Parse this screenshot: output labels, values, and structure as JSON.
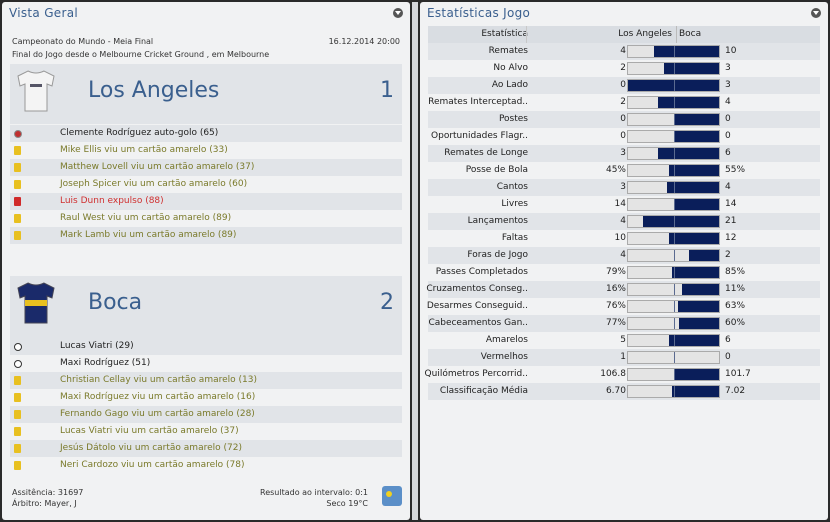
{
  "left": {
    "title": "Vista Geral",
    "competition": "Campeonato do Mundo - Meia Final",
    "datetime": "16.12.2014 20:00",
    "venue": "Final do Jogo desde o Melbourne Cricket Ground , em Melbourne",
    "home": {
      "name": "Los Angeles",
      "score": "1",
      "events": [
        {
          "type": "own-goal",
          "text": "Clemente Rodríguez auto-golo (65)"
        },
        {
          "type": "yellow",
          "text": "Mike Ellis viu um cartão amarelo (33)"
        },
        {
          "type": "yellow",
          "text": "Matthew Lovell viu um cartão amarelo (37)"
        },
        {
          "type": "yellow",
          "text": "Joseph Spicer viu um cartão amarelo (60)"
        },
        {
          "type": "red",
          "text": "Luis Dunn expulso (88)"
        },
        {
          "type": "yellow",
          "text": "Raul West viu um cartão amarelo (89)"
        },
        {
          "type": "yellow",
          "text": "Mark Lamb viu um cartão amarelo (89)"
        }
      ]
    },
    "away": {
      "name": "Boca",
      "score": "2",
      "events": [
        {
          "type": "goal",
          "text": "Lucas Viatri (29)"
        },
        {
          "type": "goal",
          "text": "Maxi Rodríguez (51)"
        },
        {
          "type": "yellow",
          "text": "Christian Cellay viu um cartão amarelo (13)"
        },
        {
          "type": "yellow",
          "text": "Maxi Rodríguez viu um cartão amarelo (16)"
        },
        {
          "type": "yellow",
          "text": "Fernando Gago viu um cartão amarelo (28)"
        },
        {
          "type": "yellow",
          "text": "Lucas Viatri viu um cartão amarelo (37)"
        },
        {
          "type": "yellow",
          "text": "Jesús Dátolo viu um cartão amarelo (72)"
        },
        {
          "type": "yellow",
          "text": "Neri Cardozo viu um cartão amarelo (78)"
        }
      ]
    },
    "attendance": "Assitência: 31697",
    "referee": "Árbitro: Mayer, J",
    "halftime": "Resultado ao intervalo: 0:1",
    "weather": "Seco 19°C",
    "weather_icon": "sunny-icon"
  },
  "right": {
    "title": "Estatísticas Jogo",
    "headers": [
      "Estatística",
      "Los Angeles",
      "Boca"
    ],
    "colors": {
      "home": "#e4e4e4",
      "away": "#0a1e5a"
    },
    "rows": [
      {
        "label": "Remates",
        "home": "4",
        "away": "10",
        "share": 0.286
      },
      {
        "label": "No Alvo",
        "home": "2",
        "away": "3",
        "share": 0.4
      },
      {
        "label": "Ao Lado",
        "home": "0",
        "away": "3",
        "share": 0
      },
      {
        "label": "Remates Interceptad..",
        "home": "2",
        "away": "4",
        "share": 0.333
      },
      {
        "label": "Postes",
        "home": "0",
        "away": "0",
        "share": 0.5
      },
      {
        "label": "Oportunidades Flagr..",
        "home": "0",
        "away": "0",
        "share": 0.5
      },
      {
        "label": "Remates de Longe",
        "home": "3",
        "away": "6",
        "share": 0.333
      },
      {
        "label": "Posse de Bola",
        "home": "45%",
        "away": "55%",
        "share": 0.45
      },
      {
        "label": "Cantos",
        "home": "3",
        "away": "4",
        "share": 0.429
      },
      {
        "label": "Livres",
        "home": "14",
        "away": "14",
        "share": 0.5
      },
      {
        "label": "Lançamentos",
        "home": "4",
        "away": "21",
        "share": 0.16
      },
      {
        "label": "Faltas",
        "home": "10",
        "away": "12",
        "share": 0.455
      },
      {
        "label": "Foras de Jogo",
        "home": "4",
        "away": "2",
        "share": 0.667
      },
      {
        "label": "Passes Completados",
        "home": "79%",
        "away": "85%",
        "share": 0.482
      },
      {
        "label": "Cruzamentos Conseg..",
        "home": "16%",
        "away": "11%",
        "share": 0.593
      },
      {
        "label": "Desarmes Conseguid..",
        "home": "76%",
        "away": "63%",
        "share": 0.547
      },
      {
        "label": "Cabeceamentos Gan..",
        "home": "77%",
        "away": "60%",
        "share": 0.562
      },
      {
        "label": "Amarelos",
        "home": "5",
        "away": "6",
        "share": 0.455
      },
      {
        "label": "Vermelhos",
        "home": "1",
        "away": "0",
        "share": 1
      },
      {
        "label": "Quilómetros Percorrid..",
        "home": "106.8",
        "away": "101.7",
        "share": 0.512
      },
      {
        "label": "Classificação Média",
        "home": "6.70",
        "away": "7.02",
        "share": 0.488
      }
    ]
  }
}
